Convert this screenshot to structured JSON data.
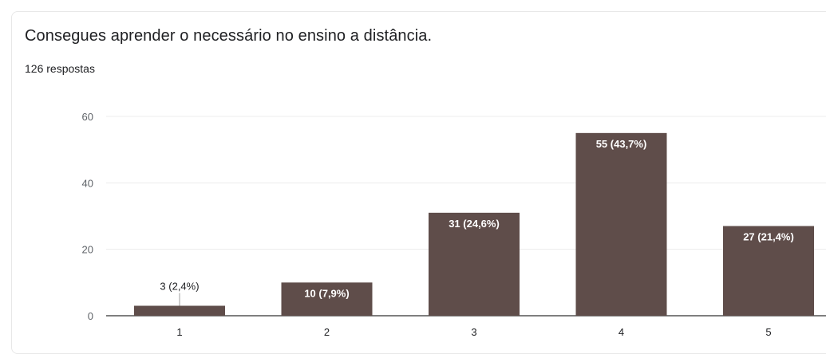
{
  "question": {
    "title": "Consegues aprender o necessário no ensino a distância.",
    "response_count": "126 respostas"
  },
  "colors": {
    "bar": "#5f4d4a",
    "grid": "#ececec",
    "axis": "#5f6368",
    "label_inside": "#ffffff",
    "label_outside": "#202124"
  },
  "chart_data": {
    "type": "bar",
    "categories": [
      "1",
      "2",
      "3",
      "4",
      "5"
    ],
    "values": [
      3,
      10,
      31,
      55,
      27
    ],
    "data_labels": [
      "3 (2,4%)",
      "10 (7,9%)",
      "31 (24,6%)",
      "55 (43,7%)",
      "27 (21,4%)"
    ],
    "y_ticks": [
      "0",
      "20",
      "40",
      "60"
    ],
    "ylim": [
      0,
      60
    ],
    "grid": true,
    "legend": "none"
  }
}
